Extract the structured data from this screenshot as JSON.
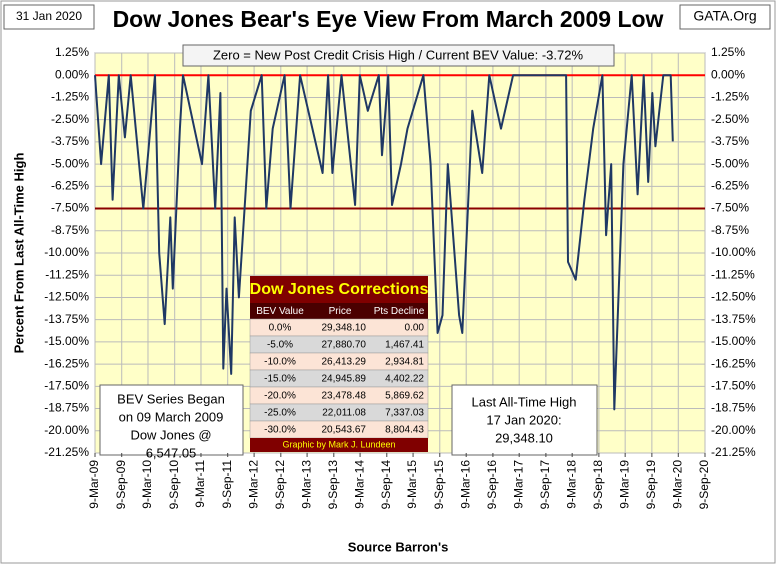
{
  "chart_data": {
    "type": "line",
    "title": "Dow Jones Bear's Eye View From March 2009 Low",
    "date_stamp": "31 Jan 2020",
    "source_tag": "GATA.Org",
    "subtitle": "Zero = New Post Credit Crisis High / Current BEV Value:  -3.72%",
    "ylabel": "Percent From Last All-Time High",
    "xlabel": "Source Barron's",
    "left_note": [
      "BEV Series Began",
      "on 09 March 2009",
      "Dow Jones @",
      "6,547.05"
    ],
    "right_note": [
      "Last All-Time High",
      "17 Jan 2020:",
      "29,348.10"
    ],
    "grid": true,
    "ylim": [
      1.25,
      -21.25
    ],
    "yticks": [
      {
        "value": 1.25,
        "label": "1.25%"
      },
      {
        "value": 0,
        "label": "0.00%"
      },
      {
        "value": -1.25,
        "label": "-1.25%"
      },
      {
        "value": -2.5,
        "label": "-2.50%"
      },
      {
        "value": -3.75,
        "label": "-3.75%"
      },
      {
        "value": -5,
        "label": "-5.00%"
      },
      {
        "value": -6.25,
        "label": "-6.25%"
      },
      {
        "value": -7.5,
        "label": "-7.50%"
      },
      {
        "value": -8.75,
        "label": "-8.75%"
      },
      {
        "value": -10,
        "label": "-10.00%"
      },
      {
        "value": -11.25,
        "label": "-11.25%"
      },
      {
        "value": -12.5,
        "label": "-12.50%"
      },
      {
        "value": -13.75,
        "label": "-13.75%"
      },
      {
        "value": -15,
        "label": "-15.00%"
      },
      {
        "value": -16.25,
        "label": "-16.25%"
      },
      {
        "value": -17.5,
        "label": "-17.50%"
      },
      {
        "value": -18.75,
        "label": "-18.75%"
      },
      {
        "value": -20,
        "label": "-20.00%"
      },
      {
        "value": -21.25,
        "label": "-21.25%"
      }
    ],
    "xlim": [
      "2009-03-09",
      "2020-09-09"
    ],
    "xticks": [
      {
        "value": "2009-03-09",
        "label": "9-Mar-09"
      },
      {
        "value": "2009-09-09",
        "label": "9-Sep-09"
      },
      {
        "value": "2010-03-09",
        "label": "9-Mar-10"
      },
      {
        "value": "2010-09-09",
        "label": "9-Sep-10"
      },
      {
        "value": "2011-03-09",
        "label": "9-Mar-11"
      },
      {
        "value": "2011-09-09",
        "label": "9-Sep-11"
      },
      {
        "value": "2012-03-09",
        "label": "9-Mar-12"
      },
      {
        "value": "2012-09-09",
        "label": "9-Sep-12"
      },
      {
        "value": "2013-03-09",
        "label": "9-Mar-13"
      },
      {
        "value": "2013-09-09",
        "label": "9-Sep-13"
      },
      {
        "value": "2014-03-09",
        "label": "9-Mar-14"
      },
      {
        "value": "2014-09-09",
        "label": "9-Sep-14"
      },
      {
        "value": "2015-03-09",
        "label": "9-Mar-15"
      },
      {
        "value": "2015-09-09",
        "label": "9-Sep-15"
      },
      {
        "value": "2016-03-09",
        "label": "9-Mar-16"
      },
      {
        "value": "2016-09-09",
        "label": "9-Sep-16"
      },
      {
        "value": "2017-03-09",
        "label": "9-Mar-17"
      },
      {
        "value": "2017-09-09",
        "label": "9-Sep-17"
      },
      {
        "value": "2018-03-09",
        "label": "9-Mar-18"
      },
      {
        "value": "2018-09-09",
        "label": "9-Sep-18"
      },
      {
        "value": "2019-03-09",
        "label": "9-Mar-19"
      },
      {
        "value": "2019-09-09",
        "label": "9-Sep-19"
      },
      {
        "value": "2020-03-09",
        "label": "9-Mar-20"
      },
      {
        "value": "2020-09-09",
        "label": "9-Sep-20"
      }
    ],
    "reference_lines": [
      {
        "value": 0,
        "color": "#ff0000"
      },
      {
        "value": -7.5,
        "color": "#8b0000"
      }
    ],
    "x": [
      "2009-03-09",
      "2009-04-20",
      "2009-06-12",
      "2009-07-08",
      "2009-08-20",
      "2009-10-01",
      "2009-11-10",
      "2010-02-05",
      "2010-04-26",
      "2010-05-25",
      "2010-07-02",
      "2010-08-10",
      "2010-08-27",
      "2010-10-15",
      "2010-11-05",
      "2011-03-16",
      "2011-04-29",
      "2011-06-15",
      "2011-07-21",
      "2011-08-10",
      "2011-09-01",
      "2011-10-03",
      "2011-10-27",
      "2011-11-25",
      "2012-02-15",
      "2012-04-30",
      "2012-06-01",
      "2012-07-15",
      "2012-10-05",
      "2012-11-15",
      "2013-01-20",
      "2013-06-24",
      "2013-08-01",
      "2013-08-30",
      "2013-11-01",
      "2014-02-03",
      "2014-03-07",
      "2014-05-01",
      "2014-07-16",
      "2014-08-07",
      "2014-09-19",
      "2014-10-15",
      "2014-12-16",
      "2015-01-30",
      "2015-05-19",
      "2015-07-08",
      "2015-08-25",
      "2015-09-28",
      "2015-11-03",
      "2016-01-20",
      "2016-02-11",
      "2016-04-20",
      "2016-06-27",
      "2016-08-15",
      "2016-11-04",
      "2017-01-26",
      "2017-06-01",
      "2017-12-01",
      "2018-01-26",
      "2018-02-08",
      "2018-04-02",
      "2018-06-01",
      "2018-08-01",
      "2018-10-03",
      "2018-10-29",
      "2018-12-03",
      "2018-12-24",
      "2019-02-25",
      "2019-04-23",
      "2019-06-03",
      "2019-07-15",
      "2019-08-15",
      "2019-09-12",
      "2019-10-03",
      "2019-11-27",
      "2020-01-17",
      "2020-01-31"
    ],
    "series": [
      {
        "name": "BEV",
        "color": "#1f3864",
        "values": [
          0,
          -5,
          0,
          -7,
          0,
          -3.5,
          0,
          -7.5,
          0,
          -10,
          -14,
          -8,
          -12,
          -3,
          0,
          -5,
          0,
          -7.5,
          -1,
          -16.5,
          -12,
          -16.8,
          -8,
          -12.5,
          -2,
          0,
          -7.5,
          -3,
          0,
          -7.5,
          0,
          -5.5,
          0,
          -5.5,
          0,
          -7.3,
          0,
          -2,
          0,
          -4.5,
          0,
          -7.3,
          -5,
          -3,
          0,
          -5,
          -14.5,
          -13.5,
          -5,
          -13.5,
          -14.5,
          -2,
          -5.5,
          0,
          -3,
          0,
          0,
          0,
          0,
          -10.5,
          -11.5,
          -7,
          -3,
          0,
          -9,
          -5,
          -18.8,
          -5,
          0,
          -6.7,
          0,
          -6,
          -1,
          -4,
          0,
          0,
          -3.72
        ]
      }
    ]
  },
  "corrections_table": {
    "title": "Dow Jones Corrections",
    "header": [
      "BEV Value",
      "Price",
      "Pts Decline"
    ],
    "rows": [
      [
        "0.0%",
        "29,348.10",
        "0.00"
      ],
      [
        "-5.0%",
        "27,880.70",
        "1,467.41"
      ],
      [
        "-10.0%",
        "26,413.29",
        "2,934.81"
      ],
      [
        "-15.0%",
        "24,945.89",
        "4,402.22"
      ],
      [
        "-20.0%",
        "23,478.48",
        "5,869.62"
      ],
      [
        "-25.0%",
        "22,011.08",
        "7,337.03"
      ],
      [
        "-30.0%",
        "20,543.67",
        "8,804.43"
      ]
    ],
    "footer": "Graphic by Mark J. Lundeen"
  }
}
